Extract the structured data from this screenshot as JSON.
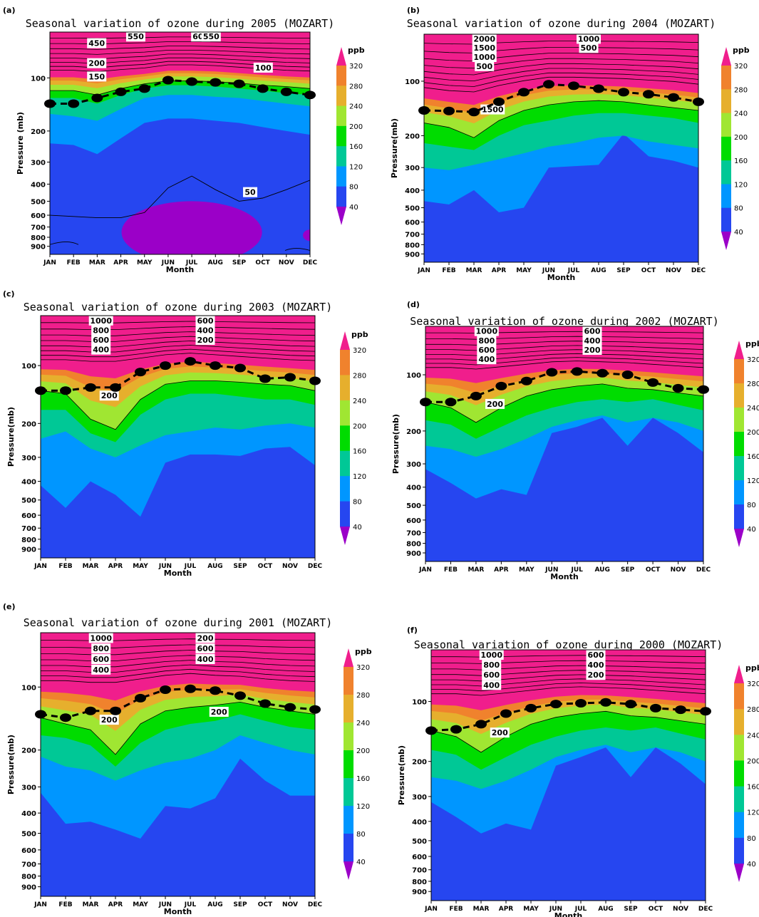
{
  "figure": {
    "months": [
      "JAN",
      "FEB",
      "MAR",
      "APR",
      "MAY",
      "JUN",
      "JUL",
      "AUG",
      "SEP",
      "OCT",
      "NOV",
      "DEC"
    ],
    "pressure_ticks": [
      100,
      200,
      300,
      400,
      500,
      600,
      700,
      800,
      900
    ],
    "colorbar": {
      "unit": "ppb",
      "levels": [
        40,
        80,
        120,
        160,
        200,
        240,
        280,
        320
      ],
      "colors": {
        "below_40": "#9b00c8",
        "40_80": "#2646f0",
        "80_120": "#0096ff",
        "120_160": "#00c896",
        "160_200": "#00dc00",
        "200_240": "#a0e632",
        "240_280": "#e6af2d",
        "280_320": "#f0822d",
        "above_320": "#f01e8c"
      }
    },
    "tropopause_marker": "black-dashed-line-with-dots"
  },
  "chart_data": [
    {
      "type": "contour",
      "panel": "(a)",
      "title": "Seasonal variation of ozone during 2005 (MOZART)",
      "xlabel": "Month",
      "ylabel": "Pressure (mb)",
      "x": [
        "JAN",
        "FEB",
        "MAR",
        "APR",
        "MAY",
        "JUN",
        "JUL",
        "AUG",
        "SEP",
        "OCT",
        "NOV",
        "DEC"
      ],
      "tropopause_pressure_mb": [
        140,
        140,
        130,
        120,
        115,
        103,
        105,
        106,
        108,
        115,
        120,
        125
      ],
      "contour_labels": [
        "550",
        "600",
        "550",
        "450",
        "200",
        "150",
        "100",
        "50"
      ],
      "contour_label_values": {
        "c100": "100",
        "c150": "150",
        "c200": "200",
        "c450": "450",
        "c550": "550",
        "c600": "600",
        "c50": "50"
      },
      "series": [
        {
          "name": "40",
          "values": [
            235,
            240,
            270,
            220,
            180,
            170,
            170,
            175,
            180,
            190,
            200,
            210
          ]
        },
        {
          "name": "80",
          "values": [
            160,
            165,
            175,
            150,
            130,
            125,
            125,
            128,
            130,
            135,
            140,
            145
          ]
        },
        {
          "name": "120",
          "values": [
            130,
            130,
            140,
            125,
            115,
            110,
            110,
            112,
            115,
            118,
            122,
            125
          ]
        },
        {
          "name": "160",
          "values": [
            118,
            118,
            125,
            115,
            108,
            104,
            104,
            105,
            107,
            110,
            112,
            115
          ]
        },
        {
          "name": "320",
          "values": [
            95,
            95,
            97,
            94,
            92,
            88,
            88,
            89,
            91,
            93,
            95,
            96
          ]
        }
      ]
    },
    {
      "type": "contour",
      "panel": "(b)",
      "title": "Seasonal variation of ozone during 2004 (MOZART)",
      "xlabel": "Month",
      "ylabel": "Pressure(mb)",
      "x": [
        "JAN",
        "FEB",
        "MAR",
        "APR",
        "MAY",
        "JUN",
        "JUL",
        "AUG",
        "SEP",
        "OCT",
        "NOV",
        "DEC"
      ],
      "tropopause_pressure_mb": [
        145,
        146,
        148,
        130,
        115,
        104,
        106,
        110,
        115,
        118,
        123,
        130
      ],
      "contour_labels": [
        "2000",
        "1500",
        "1000",
        "500",
        "1500",
        "1000",
        "500"
      ],
      "series": [
        {
          "name": "40",
          "values": [
            460,
            480,
            400,
            530,
            500,
            300,
            295,
            290,
            195,
            260,
            275,
            300
          ]
        },
        {
          "name": "80",
          "values": [
            300,
            310,
            290,
            270,
            250,
            230,
            220,
            205,
            200,
            215,
            225,
            235
          ]
        },
        {
          "name": "120",
          "values": [
            220,
            230,
            240,
            200,
            175,
            165,
            155,
            150,
            150,
            155,
            160,
            170
          ]
        },
        {
          "name": "160",
          "values": [
            170,
            180,
            205,
            165,
            145,
            135,
            130,
            128,
            130,
            135,
            140,
            145
          ]
        },
        {
          "name": "320",
          "values": [
            115,
            120,
            122,
            112,
            105,
            100,
            100,
            101,
            102,
            104,
            106,
            110
          ]
        }
      ]
    },
    {
      "type": "contour",
      "panel": "(c)",
      "title": "Seasonal variation of ozone during 2003 (MOZART)",
      "xlabel": "Month",
      "ylabel": "Pressure(mb)",
      "x": [
        "JAN",
        "FEB",
        "MAR",
        "APR",
        "MAY",
        "JUN",
        "JUL",
        "AUG",
        "SEP",
        "OCT",
        "NOV",
        "DEC"
      ],
      "tropopause_pressure_mb": [
        135,
        135,
        130,
        130,
        108,
        100,
        95,
        100,
        103,
        117,
        115,
        120
      ],
      "contour_labels": [
        "1000",
        "800",
        "600",
        "400",
        "200",
        "600",
        "400",
        "200"
      ],
      "series": [
        {
          "name": "40",
          "values": [
            420,
            550,
            400,
            470,
            610,
            320,
            290,
            290,
            295,
            270,
            265,
            330
          ]
        },
        {
          "name": "80",
          "values": [
            240,
            220,
            270,
            300,
            260,
            230,
            220,
            210,
            215,
            205,
            200,
            210
          ]
        },
        {
          "name": "120",
          "values": [
            170,
            170,
            225,
            250,
            180,
            150,
            140,
            140,
            145,
            150,
            150,
            160
          ]
        },
        {
          "name": "160",
          "values": [
            135,
            140,
            190,
            215,
            150,
            125,
            120,
            120,
            122,
            125,
            127,
            135
          ]
        },
        {
          "name": "320",
          "values": [
            98,
            98,
            100,
            100,
            96,
            92,
            90,
            92,
            94,
            96,
            98,
            99
          ]
        }
      ]
    },
    {
      "type": "contour",
      "panel": "(d)",
      "title": "Seasonal variation of ozone during 2002 (MOZART)",
      "xlabel": "Month",
      "ylabel": "Pressure(mb)",
      "x": [
        "JAN",
        "FEB",
        "MAR",
        "APR",
        "MAY",
        "JUN",
        "JUL",
        "AUG",
        "SEP",
        "OCT",
        "NOV",
        "DEC"
      ],
      "tropopause_pressure_mb": [
        140,
        140,
        130,
        115,
        108,
        97,
        96,
        98,
        100,
        110,
        118,
        120
      ],
      "contour_labels": [
        "1000",
        "800",
        "600",
        "400",
        "200",
        "600",
        "400",
        "200"
      ],
      "series": [
        {
          "name": "40",
          "values": [
            320,
            380,
            460,
            410,
            440,
            205,
            190,
            170,
            240,
            170,
            205,
            260
          ]
        },
        {
          "name": "80",
          "values": [
            240,
            250,
            275,
            250,
            220,
            190,
            175,
            165,
            180,
            170,
            180,
            200
          ]
        },
        {
          "name": "120",
          "values": [
            175,
            185,
            220,
            190,
            165,
            150,
            140,
            135,
            140,
            135,
            145,
            155
          ]
        },
        {
          "name": "160",
          "values": [
            140,
            150,
            180,
            150,
            130,
            120,
            115,
            112,
            118,
            120,
            125,
            130
          ]
        },
        {
          "name": "320",
          "values": [
            96,
            96,
            98,
            95,
            92,
            89,
            88,
            89,
            90,
            92,
            94,
            96
          ]
        }
      ]
    },
    {
      "type": "contour",
      "panel": "(e)",
      "title": "Seasonal variation of ozone during 2001 (MOZART)",
      "xlabel": "Month",
      "ylabel": "Pressure(mb)",
      "x": [
        "JAN",
        "FEB",
        "MAR",
        "APR",
        "MAY",
        "JUN",
        "JUL",
        "AUG",
        "SEP",
        "OCT",
        "NOV",
        "DEC"
      ],
      "tropopause_pressure_mb": [
        135,
        140,
        130,
        130,
        113,
        103,
        102,
        104,
        110,
        120,
        125,
        128
      ],
      "contour_labels": [
        "1000",
        "800",
        "600",
        "400",
        "200",
        "200",
        "600",
        "400",
        "200"
      ],
      "series": [
        {
          "name": "40",
          "values": [
            320,
            450,
            440,
            480,
            530,
            370,
            380,
            340,
            220,
            280,
            330,
            330
          ]
        },
        {
          "name": "80",
          "values": [
            215,
            240,
            250,
            280,
            250,
            230,
            220,
            200,
            170,
            185,
            200,
            210
          ]
        },
        {
          "name": "120",
          "values": [
            170,
            175,
            190,
            240,
            185,
            160,
            150,
            145,
            135,
            145,
            155,
            160
          ]
        },
        {
          "name": "160",
          "values": [
            140,
            150,
            160,
            210,
            150,
            130,
            125,
            122,
            118,
            125,
            130,
            135
          ]
        },
        {
          "name": "320",
          "values": [
            98,
            98,
            100,
            100,
            96,
            92,
            90,
            92,
            93,
            96,
            98,
            99
          ]
        }
      ]
    },
    {
      "type": "contour",
      "panel": "(f)",
      "title": "Seasonal variation of ozone during 2000 (MOZART)",
      "xlabel": "Month",
      "ylabel": "Pressure(mb)",
      "x": [
        "JAN",
        "FEB",
        "MAR",
        "APR",
        "MAY",
        "JUN",
        "JUL",
        "AUG",
        "SEP",
        "OCT",
        "NOV",
        "DEC"
      ],
      "tropopause_pressure_mb": [
        140,
        138,
        130,
        115,
        108,
        103,
        102,
        101,
        103,
        108,
        110,
        112
      ],
      "contour_labels": [
        "1000",
        "800",
        "600",
        "400",
        "200",
        "600",
        "400",
        "200"
      ],
      "series": [
        {
          "name": "40",
          "values": [
            320,
            380,
            460,
            410,
            440,
            210,
            190,
            170,
            240,
            170,
            205,
            260
          ]
        },
        {
          "name": "80",
          "values": [
            240,
            250,
            275,
            250,
            220,
            190,
            175,
            165,
            180,
            170,
            180,
            200
          ]
        },
        {
          "name": "120",
          "values": [
            175,
            185,
            220,
            190,
            165,
            150,
            140,
            135,
            140,
            135,
            145,
            155
          ]
        },
        {
          "name": "160",
          "values": [
            140,
            150,
            180,
            150,
            130,
            120,
            115,
            112,
            118,
            120,
            125,
            130
          ]
        },
        {
          "name": "320",
          "values": [
            96,
            96,
            98,
            95,
            92,
            89,
            88,
            89,
            90,
            92,
            94,
            96
          ]
        }
      ]
    }
  ]
}
